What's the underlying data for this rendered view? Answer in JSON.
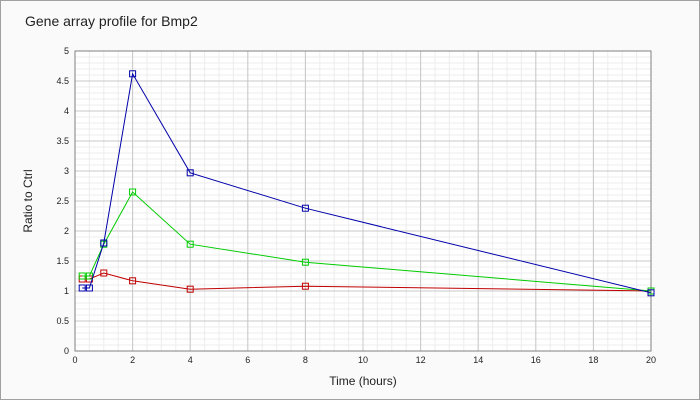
{
  "chart_data": {
    "type": "line",
    "title": "Gene array profile for Bmp2",
    "xlabel": "Time (hours)",
    "ylabel": "Ratio to Ctrl",
    "xlim": [
      0,
      20
    ],
    "ylim": [
      0,
      5
    ],
    "x_ticks": [
      0,
      2,
      4,
      6,
      8,
      10,
      12,
      14,
      16,
      18,
      20
    ],
    "y_ticks": [
      0,
      0.5,
      1,
      1.5,
      2,
      2.5,
      3,
      3.5,
      4,
      4.5,
      5
    ],
    "x_tick_labels": [
      "0",
      "2",
      "4",
      "6",
      "8",
      "10",
      "12",
      "14",
      "16",
      "18",
      "20"
    ],
    "y_tick_labels": [
      "0",
      "0.5",
      "1",
      "1.5",
      "2",
      "2.5",
      "3",
      "3.5",
      "4",
      "4.5",
      "5"
    ],
    "grid": true,
    "marker": "square",
    "series": [
      {
        "color": "#c00000",
        "x": [
          0.25,
          0.5,
          1,
          2,
          4,
          8,
          20
        ],
        "y": [
          1.2,
          1.2,
          1.3,
          1.17,
          1.03,
          1.08,
          1.0
        ]
      },
      {
        "color": "#00cc00",
        "x": [
          0.25,
          0.5,
          1,
          2,
          4,
          8,
          20
        ],
        "y": [
          1.25,
          1.25,
          1.78,
          2.65,
          1.78,
          1.48,
          1.0
        ]
      },
      {
        "color": "#0000aa",
        "x": [
          0.25,
          0.5,
          1,
          2,
          4,
          8,
          20
        ],
        "y": [
          1.05,
          1.05,
          1.8,
          4.62,
          2.97,
          2.38,
          0.97
        ]
      }
    ]
  }
}
